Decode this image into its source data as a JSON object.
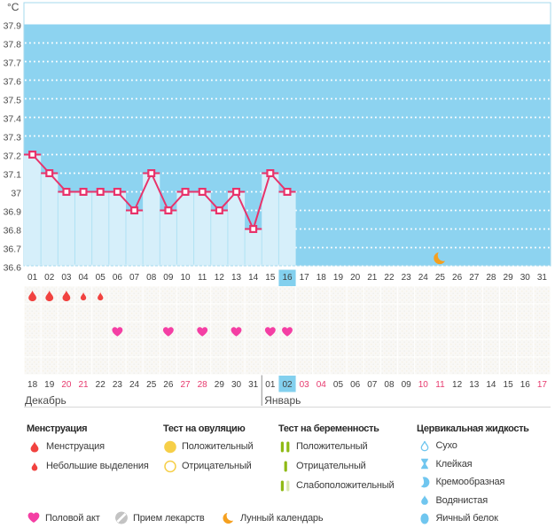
{
  "chart_data": {
    "type": "line",
    "title": "",
    "unit": "°C",
    "y_axis": {
      "min": 36.6,
      "max": 37.9,
      "step": 0.1,
      "labels": [
        "37.9",
        "37.8",
        "37.7",
        "37.6",
        "37.5",
        "37.4",
        "37.3",
        "37.2",
        "37.1",
        "37",
        "36.9",
        "36.8",
        "36.7",
        "36.6"
      ]
    },
    "x_axis": {
      "cycle_days": [
        "01",
        "02",
        "03",
        "04",
        "05",
        "06",
        "07",
        "08",
        "09",
        "10",
        "11",
        "12",
        "13",
        "14",
        "15",
        "16",
        "17",
        "18",
        "19",
        "20",
        "21",
        "22",
        "23",
        "24",
        "25",
        "26",
        "27",
        "28",
        "29",
        "30",
        "31"
      ],
      "selected_cycle_day": "16"
    },
    "series": [
      {
        "name": "temperature",
        "days": [
          1,
          2,
          3,
          4,
          5,
          6,
          7,
          8,
          9,
          10,
          11,
          12,
          13,
          14,
          15,
          16
        ],
        "values": [
          37.2,
          37.1,
          37.0,
          37.0,
          37.0,
          37.0,
          36.9,
          37.1,
          36.9,
          37.0,
          37.0,
          36.9,
          37.0,
          36.8,
          37.1,
          37.0
        ]
      }
    ],
    "moon_day": 25,
    "grid": "dotted-white",
    "legend_position": "bottom"
  },
  "symbol_rows": {
    "menstruation": {
      "large_days": [
        1,
        2,
        3
      ],
      "small_days": [
        4,
        5
      ]
    },
    "ovulation_test": {
      "days": []
    },
    "intercourse": {
      "days": [
        6,
        9,
        11,
        13,
        15,
        16
      ]
    },
    "row_count": 5
  },
  "calendar_row": {
    "months": [
      {
        "label": "Декабрь",
        "days": [
          "18",
          "19",
          "20",
          "21",
          "22",
          "23",
          "24",
          "25",
          "26",
          "27",
          "28",
          "29",
          "30",
          "31"
        ],
        "weekend_days": [
          "20",
          "21",
          "27",
          "28"
        ],
        "selected_day": null
      },
      {
        "label": "Январь",
        "days": [
          "01",
          "02",
          "03",
          "04",
          "05",
          "06",
          "07",
          "08",
          "09",
          "10",
          "11",
          "12",
          "13",
          "14",
          "15",
          "16",
          "17"
        ],
        "weekend_days": [
          "03",
          "04",
          "10",
          "11",
          "17"
        ],
        "selected_day": "02"
      }
    ]
  },
  "legend": {
    "columns": [
      {
        "header": "Менструация",
        "items": [
          {
            "icon": "drop-large",
            "label": "Менструация"
          },
          {
            "icon": "drop-small",
            "label": "Небольшие выделения"
          }
        ]
      },
      {
        "header": "Тест на овуляцию",
        "items": [
          {
            "icon": "circle-filled",
            "label": "Положительный"
          },
          {
            "icon": "circle-outline",
            "label": "Отрицательный"
          }
        ]
      },
      {
        "header": "Тест на беременность",
        "items": [
          {
            "icon": "bars-two",
            "label": "Положительный"
          },
          {
            "icon": "bar-one",
            "label": "Отрицательный"
          },
          {
            "icon": "bars-weak",
            "label": "Слабоположительный"
          }
        ]
      },
      {
        "header": "Цервикальная жидкость",
        "items": [
          {
            "icon": "drop-outline-blue",
            "label": "Сухо"
          },
          {
            "icon": "hourglass-blue",
            "label": "Клейкая"
          },
          {
            "icon": "comma-blue",
            "label": "Кремообразная"
          },
          {
            "icon": "drop-blue",
            "label": "Водянистая"
          },
          {
            "icon": "ellipse-blue",
            "label": "Яичный белок"
          }
        ]
      }
    ],
    "bottom_row": [
      {
        "icon": "heart-pink",
        "label": "Половой акт"
      },
      {
        "icon": "pill-gray",
        "label": "Прием лекарств"
      },
      {
        "icon": "moon-orange",
        "label": "Лунный календарь"
      }
    ]
  },
  "colors": {
    "plot_background": "#8dd3f0",
    "plot_border": "#a5d9ee",
    "bar_fill": "#d6effa",
    "bar_separator": "#b0e2f4",
    "gridline": "#ffffff",
    "temp_line": "#e8336b",
    "marker_fill": "#ffffff",
    "day_text": "#3f3f3f",
    "axis_text": "#4a4a4a",
    "weekend_text": "#e73a6e",
    "selected_day_box": "#83d0ee",
    "cell_base": "#f9f8f6",
    "cell_dot_gray": "#efefec",
    "cell_dot_yellow": "#f6f1e4",
    "menstruation_red": "#f1423f",
    "heart_pink": "#f43fa4",
    "ovulation_yellow": "#f6cf48",
    "pregnancy_green": "#8fba15",
    "pregnancy_green_pale": "#d9e7ac",
    "cervical_blue": "#70c6ef",
    "pill_gray": "#c3c3c3",
    "moon_orange": "#f5a01f",
    "month_separator": "#909090",
    "rule_gray": "#d8d8d8"
  }
}
